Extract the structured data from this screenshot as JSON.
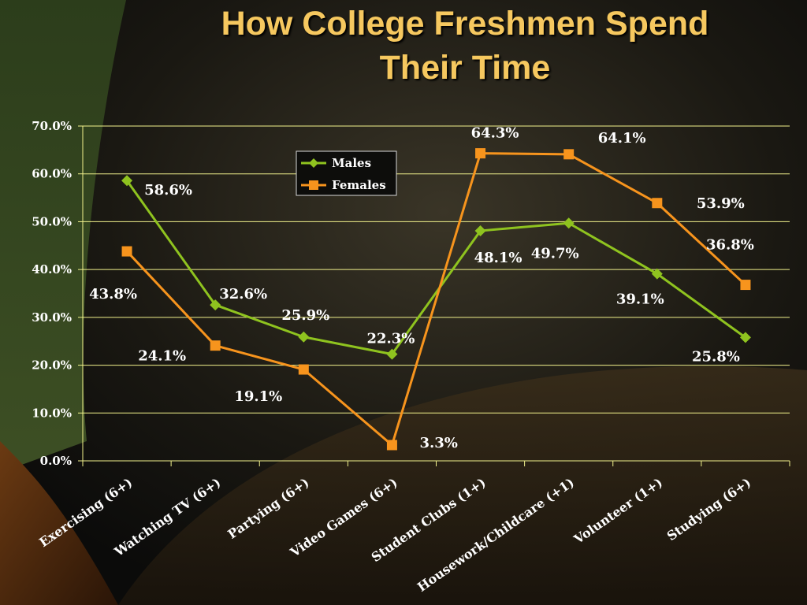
{
  "title_line1": "How College Freshmen Spend",
  "title_line2": "Their Time",
  "colors": {
    "title": "#f6c85f",
    "males": "#8fc31f",
    "females": "#f7941d",
    "grid": "#f2f28c",
    "text": "#ffffff"
  },
  "chart_data": {
    "type": "line",
    "title": "How College Freshmen Spend Their Time",
    "xlabel": "",
    "ylabel": "",
    "ylim": [
      0,
      70
    ],
    "yticks": [
      "0.0%",
      "10.0%",
      "20.0%",
      "30.0%",
      "40.0%",
      "50.0%",
      "60.0%",
      "70.0%"
    ],
    "grid": true,
    "legend": "top-center",
    "categories": [
      "Exercising (6+)",
      "Watching TV (6+)",
      "Partying (6+)",
      "Video Games (6+)",
      "Student Clubs (1+)",
      "Housework/Childcare (+1)",
      "Volunteer (1+)",
      "Studying (6+)"
    ],
    "series": [
      {
        "name": "Males",
        "marker": "diamond",
        "values": [
          58.6,
          32.6,
          25.9,
          22.3,
          48.1,
          49.7,
          39.1,
          25.8
        ],
        "labels": [
          "58.6%",
          "32.6%",
          "25.9%",
          "22.3%",
          "48.1%",
          "49.7%",
          "39.1%",
          "25.8%"
        ]
      },
      {
        "name": "Females",
        "marker": "square",
        "values": [
          43.8,
          24.1,
          19.1,
          3.3,
          64.3,
          64.1,
          53.9,
          36.8
        ],
        "labels": [
          "43.8%",
          "24.1%",
          "19.1%",
          "3.3%",
          "64.3%",
          "64.1%",
          "53.9%",
          "36.8%"
        ]
      }
    ]
  }
}
